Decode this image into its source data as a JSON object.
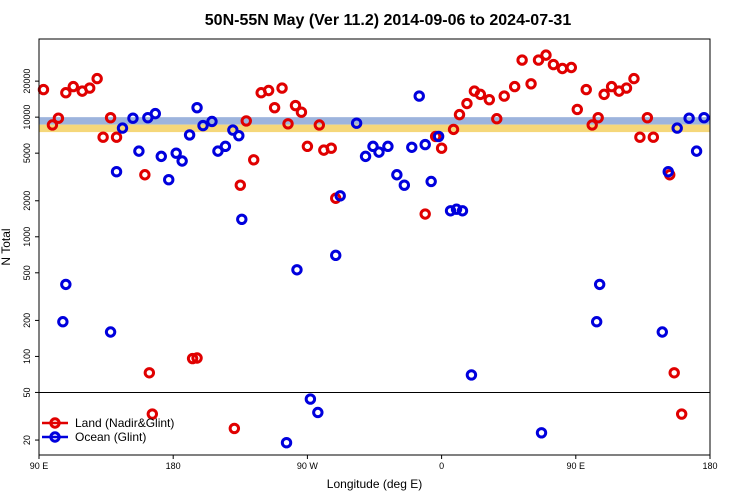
{
  "chart_data": {
    "type": "scatter",
    "title": "50N-55N May (Ver 11.2)   2014-09-06 to 2024-07-31",
    "xlabel": "Longitude (deg E)",
    "ylabel": "N Total",
    "x_scale": "longitude",
    "y_scale": "log",
    "xlim": [
      90,
      540
    ],
    "ylim": [
      15,
      45000
    ],
    "x_ticks": [
      {
        "value": 90,
        "label": "90 E"
      },
      {
        "value": 180,
        "label": "180"
      },
      {
        "value": 270,
        "label": "90 W"
      },
      {
        "value": 360,
        "label": "0"
      },
      {
        "value": 450,
        "label": "90 E"
      },
      {
        "value": 540,
        "label": "180"
      }
    ],
    "y_ticks": [
      20,
      50,
      100,
      200,
      500,
      1000,
      2000,
      5000,
      10000,
      20000
    ],
    "reference_line": 50,
    "band": {
      "low": 7500,
      "high": 10000,
      "colors": [
        "#9db4dd",
        "#f5d77a"
      ]
    },
    "grid": false,
    "legend_position": "bottom-left",
    "series": [
      {
        "name": "Land (Nadir&Glint)",
        "color": "#e00000",
        "points": [
          [
            93,
            17000
          ],
          [
            99,
            8600
          ],
          [
            103,
            9800
          ],
          [
            108,
            16000
          ],
          [
            113,
            18000
          ],
          [
            119,
            16500
          ],
          [
            124,
            17500
          ],
          [
            129,
            21000
          ],
          [
            133,
            6800
          ],
          [
            138,
            9900
          ],
          [
            142,
            6800
          ],
          [
            161,
            3300
          ],
          [
            164,
            73
          ],
          [
            166,
            33
          ],
          [
            193,
            96
          ],
          [
            196,
            97
          ],
          [
            221,
            25
          ],
          [
            225,
            2700
          ],
          [
            229,
            9300
          ],
          [
            234,
            4400
          ],
          [
            239,
            16000
          ],
          [
            244,
            16700
          ],
          [
            248,
            12000
          ],
          [
            253,
            17500
          ],
          [
            257,
            8800
          ],
          [
            262,
            12500
          ],
          [
            266,
            11000
          ],
          [
            270,
            5700
          ],
          [
            278,
            8600
          ],
          [
            281,
            5300
          ],
          [
            286,
            5500
          ],
          [
            289,
            2100
          ],
          [
            349,
            1550
          ],
          [
            356,
            6900
          ],
          [
            360,
            5500
          ],
          [
            368,
            7900
          ],
          [
            372,
            10500
          ],
          [
            377,
            13000
          ],
          [
            382,
            16500
          ],
          [
            386,
            15500
          ],
          [
            392,
            14000
          ],
          [
            397,
            9700
          ],
          [
            402,
            15000
          ],
          [
            409,
            18000
          ],
          [
            414,
            30000
          ],
          [
            420,
            19000
          ],
          [
            425,
            30000
          ],
          [
            430,
            33000
          ],
          [
            435,
            27500
          ],
          [
            441,
            25500
          ],
          [
            447,
            26000
          ],
          [
            451,
            11600
          ],
          [
            457,
            17000
          ],
          [
            461,
            8600
          ],
          [
            465,
            9900
          ],
          [
            469,
            15500
          ],
          [
            474,
            18000
          ],
          [
            479,
            16500
          ],
          [
            484,
            17500
          ],
          [
            489,
            21000
          ],
          [
            493,
            6800
          ],
          [
            498,
            9900
          ],
          [
            502,
            6800
          ],
          [
            513,
            3300
          ],
          [
            516,
            73
          ],
          [
            521,
            33
          ]
        ]
      },
      {
        "name": "Ocean (Glint)",
        "color": "#0000dd",
        "points": [
          [
            106,
            195
          ],
          [
            108,
            400
          ],
          [
            138,
            160
          ],
          [
            142,
            3500
          ],
          [
            146,
            8100
          ],
          [
            153,
            9800
          ],
          [
            157,
            5200
          ],
          [
            163,
            9900
          ],
          [
            168,
            10700
          ],
          [
            172,
            4700
          ],
          [
            177,
            3000
          ],
          [
            182,
            5000
          ],
          [
            186,
            4300
          ],
          [
            191,
            7100
          ],
          [
            196,
            12000
          ],
          [
            200,
            8500
          ],
          [
            206,
            9200
          ],
          [
            210,
            5200
          ],
          [
            215,
            5700
          ],
          [
            220,
            7800
          ],
          [
            224,
            7000
          ],
          [
            226,
            1400
          ],
          [
            256,
            19
          ],
          [
            263,
            530
          ],
          [
            272,
            44
          ],
          [
            277,
            34
          ],
          [
            289,
            700
          ],
          [
            292,
            2200
          ],
          [
            303,
            8900
          ],
          [
            309,
            4700
          ],
          [
            314,
            5700
          ],
          [
            318,
            5100
          ],
          [
            324,
            5700
          ],
          [
            330,
            3300
          ],
          [
            335,
            2700
          ],
          [
            340,
            5600
          ],
          [
            345,
            15000
          ],
          [
            349,
            5900
          ],
          [
            353,
            2900
          ],
          [
            358,
            6900
          ],
          [
            366,
            1650
          ],
          [
            370,
            1700
          ],
          [
            374,
            1650
          ],
          [
            380,
            70
          ],
          [
            427,
            23
          ],
          [
            464,
            195
          ],
          [
            466,
            400
          ],
          [
            508,
            160
          ],
          [
            512,
            3500
          ],
          [
            518,
            8100
          ],
          [
            526,
            9800
          ],
          [
            531,
            5200
          ],
          [
            536,
            9900
          ],
          [
            541,
            10700
          ],
          [
            547,
            4700
          ],
          [
            551,
            3000
          ]
        ]
      }
    ]
  }
}
